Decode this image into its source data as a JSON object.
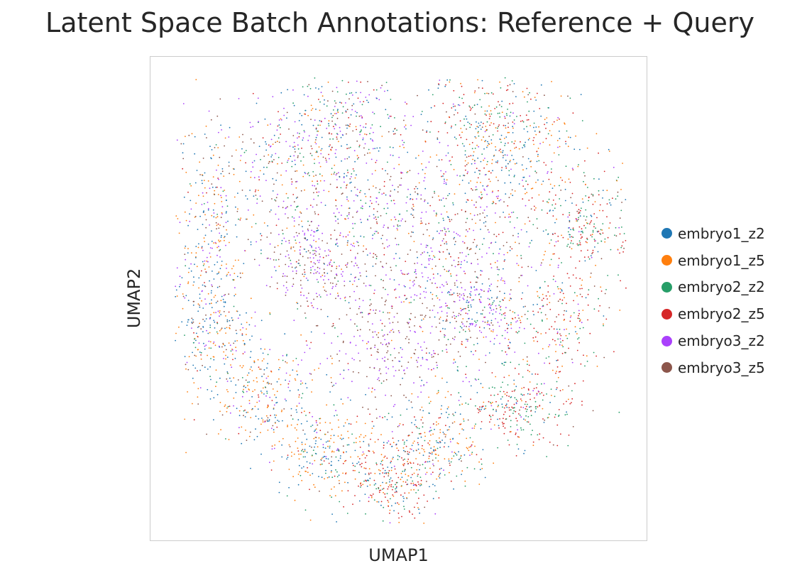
{
  "chart_data": {
    "type": "scatter",
    "title": "Latent Space Batch Annotations: Reference + Query",
    "xlabel": "UMAP1",
    "ylabel": "UMAP2",
    "xticks": [],
    "yticks": [],
    "grid": false,
    "legend_position": "right",
    "series": [
      {
        "name": "embryo1_z2",
        "color": "#1f77b4"
      },
      {
        "name": "embryo1_z5",
        "color": "#ff7f0e"
      },
      {
        "name": "embryo2_z2",
        "color": "#279e68"
      },
      {
        "name": "embryo2_z5",
        "color": "#d62728"
      },
      {
        "name": "embryo3_z2",
        "color": "#aa40fc"
      },
      {
        "name": "embryo3_z5",
        "color": "#8c564b"
      }
    ]
  }
}
